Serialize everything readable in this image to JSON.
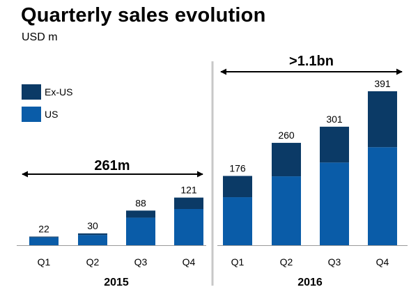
{
  "title": "Quarterly sales evolution",
  "subtitle": "USD m",
  "chart_data": {
    "type": "bar",
    "stacked": true,
    "categories": [
      "Q1",
      "Q2",
      "Q3",
      "Q4",
      "Q1",
      "Q2",
      "Q3",
      "Q4"
    ],
    "groups": [
      {
        "label": "2015",
        "indices": [
          0,
          1,
          2,
          3
        ]
      },
      {
        "label": "2016",
        "indices": [
          4,
          5,
          6,
          7
        ]
      }
    ],
    "series": [
      {
        "name": "US",
        "color": "#0a5ca8",
        "values": [
          20,
          26,
          70,
          92,
          122,
          175,
          210,
          249
        ]
      },
      {
        "name": "Ex-US",
        "color": "#0b3a66",
        "values": [
          2,
          4,
          18,
          29,
          54,
          85,
          91,
          142
        ]
      }
    ],
    "totals": [
      "22",
      "30",
      "88",
      "121",
      "176",
      "260",
      "301",
      "391"
    ],
    "ylim": [
      0,
      391
    ],
    "legend": {
      "position": "top-left",
      "order": [
        "Ex-US",
        "US"
      ]
    },
    "annotations": [
      {
        "label": "261m",
        "spans": "2015"
      },
      {
        "label": ">1.1bn",
        "spans": "2016"
      }
    ],
    "grid": false
  }
}
